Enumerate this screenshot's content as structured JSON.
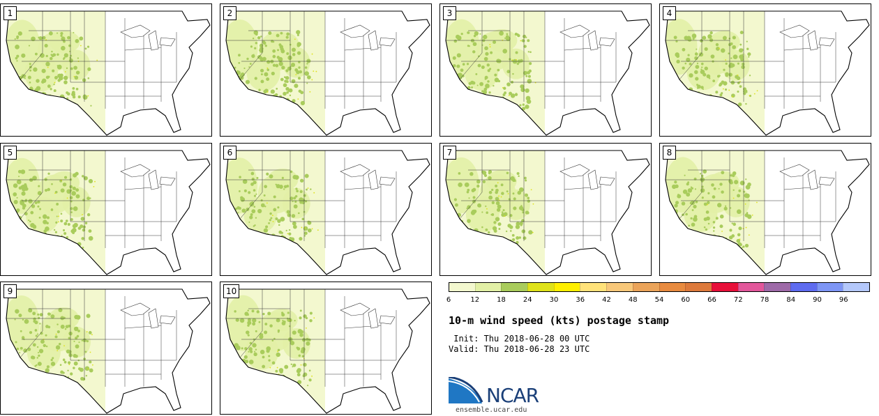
{
  "panels": [
    {
      "label": "1"
    },
    {
      "label": "2"
    },
    {
      "label": "3"
    },
    {
      "label": "4"
    },
    {
      "label": "5"
    },
    {
      "label": "6"
    },
    {
      "label": "7"
    },
    {
      "label": "8"
    },
    {
      "label": "9"
    },
    {
      "label": "10"
    }
  ],
  "colorbar": {
    "ticks": [
      "6",
      "12",
      "18",
      "24",
      "30",
      "36",
      "42",
      "48",
      "54",
      "60",
      "66",
      "72",
      "78",
      "84",
      "90",
      "96"
    ],
    "colors": [
      "#f3f8cf",
      "#e2f0a6",
      "#a9cc5c",
      "#dfe21a",
      "#fff000",
      "#ffe27a",
      "#f8c87a",
      "#eba45a",
      "#e88b40",
      "#dd7a3c",
      "#e8103a",
      "#e2579b",
      "#9e6aa8",
      "#5f6cf0",
      "#7e96f6",
      "#b4c8fb"
    ]
  },
  "title": "10-m wind speed (kts) postage stamp",
  "init": " Init: Thu 2018-06-28 00 UTC",
  "valid": "Valid: Thu 2018-06-28 23 UTC",
  "logo": {
    "text": "NCAR",
    "url": "ensemble.ucar.edu"
  }
}
